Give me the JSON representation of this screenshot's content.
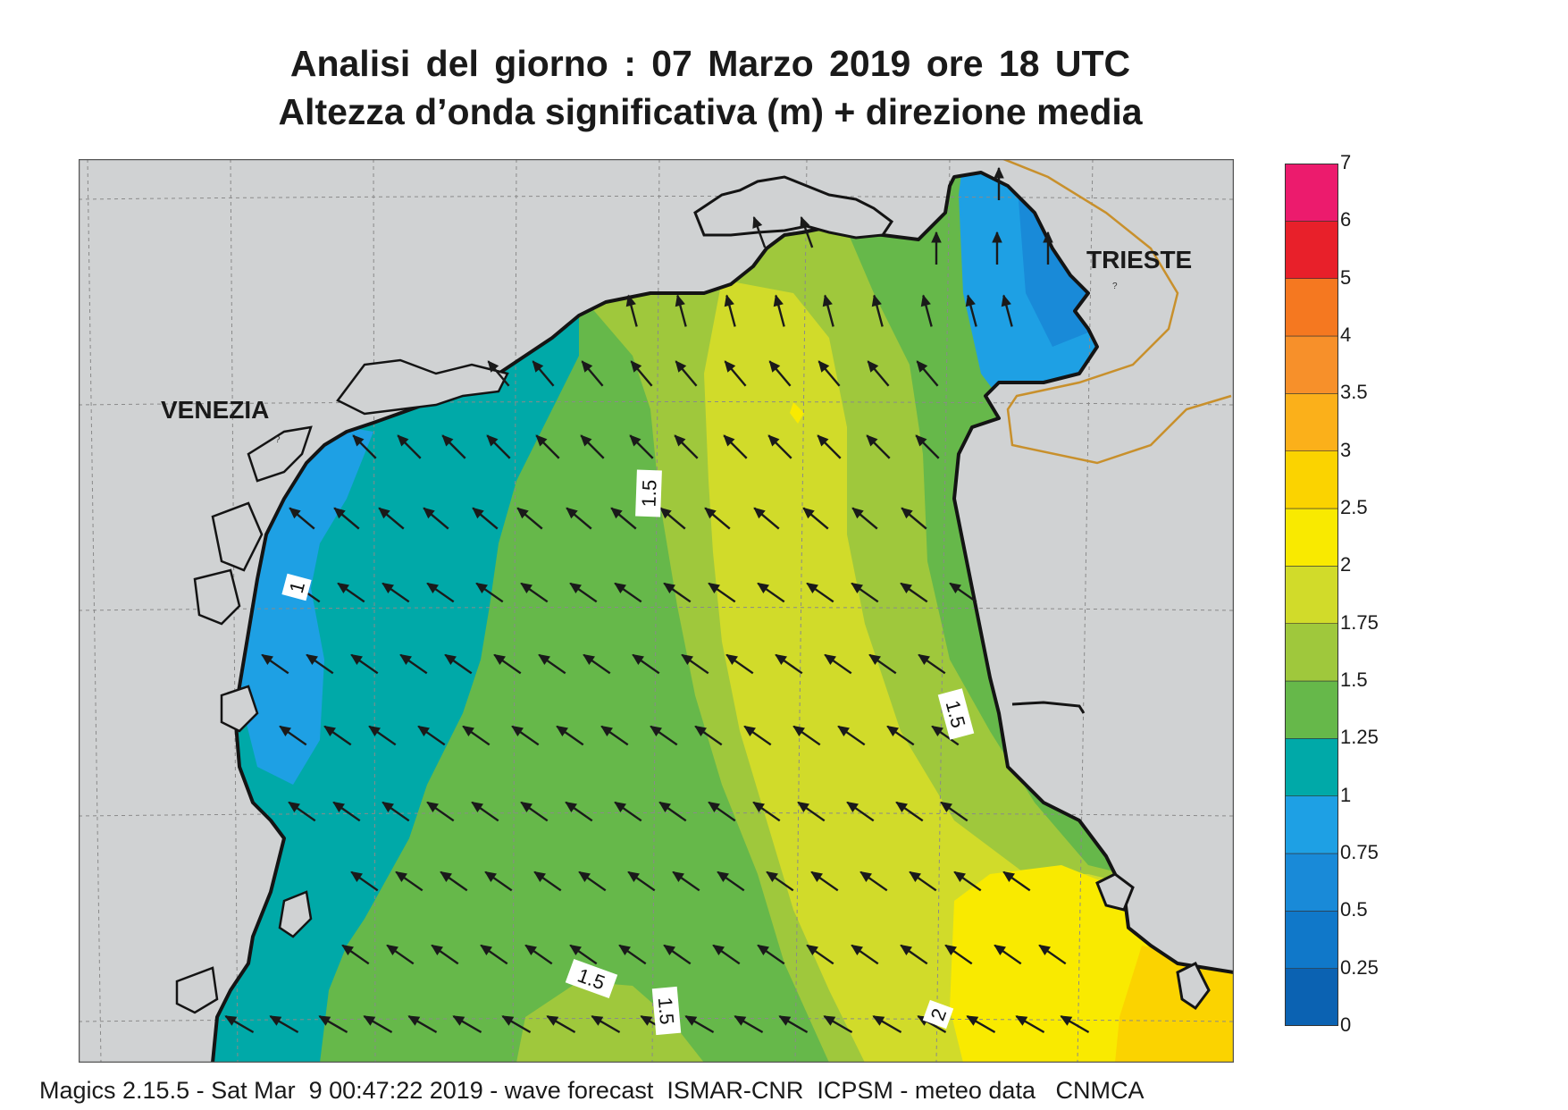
{
  "title_line1": "Analisi del giorno :  07   Marzo   2019   ore 18 UTC",
  "title_line2": "Altezza d’onda significativa (m) + direzione media",
  "places": {
    "venezia": "VENEZIA",
    "trieste": "TRIESTE"
  },
  "contour_labels": [
    "1",
    "1.5",
    "1.5",
    "1.5",
    "1.5",
    "2"
  ],
  "legend": {
    "ticks": [
      "0",
      "0.25",
      "0.5",
      "0.75",
      "1",
      "1.25",
      "1.5",
      "1.75",
      "2",
      "2.5",
      "3",
      "3.5",
      "4",
      "5",
      "6",
      "7"
    ],
    "colors": [
      "#0b62b2",
      "#1078c9",
      "#198ad8",
      "#1ea0e4",
      "#00a9a8",
      "#66b84a",
      "#9fc83c",
      "#d1db2a",
      "#f9ea00",
      "#fbd300",
      "#fbb01a",
      "#f7902a",
      "#f57820",
      "#e8202a",
      "#ec1b6d"
    ]
  },
  "map_colors": {
    "land": "#d0d2d3",
    "coast": "#141414",
    "border": "#c8902c",
    "arrow": "#1a1a1a"
  },
  "wave_direction": "toward north-west",
  "footer": "Magics 2.15.5 - Sat Mar  9 00:47:22 2019 - wave forecast  ISMAR-CNR  ICPSM - meteo data   CNMCA"
}
